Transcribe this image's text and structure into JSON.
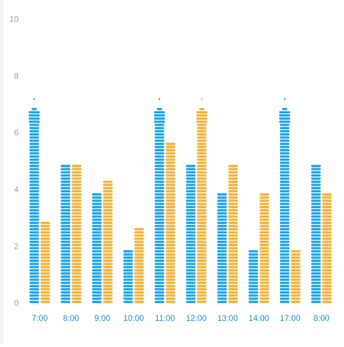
{
  "chart_data": {
    "type": "bar",
    "categories": [
      "7:00",
      "8:00",
      "9:00",
      "10:00",
      "11:00",
      "12:00",
      "13:00",
      "14:00",
      "17:00",
      "8:00"
    ],
    "series": [
      {
        "values": [
          7,
          5,
          4,
          2,
          7,
          5,
          4,
          2,
          7,
          5
        ],
        "color": "#1aa3f0"
      },
      {
        "values": [
          2.9,
          5,
          4.4,
          2.7,
          5.7,
          7,
          5,
          4,
          2,
          4
        ],
        "color": "#f8b035"
      }
    ],
    "ylim": [
      0,
      10
    ],
    "yticks": [
      0,
      2,
      4,
      6,
      8,
      10
    ],
    "grid": false,
    "bar_style": "pictorial-segmented"
  }
}
